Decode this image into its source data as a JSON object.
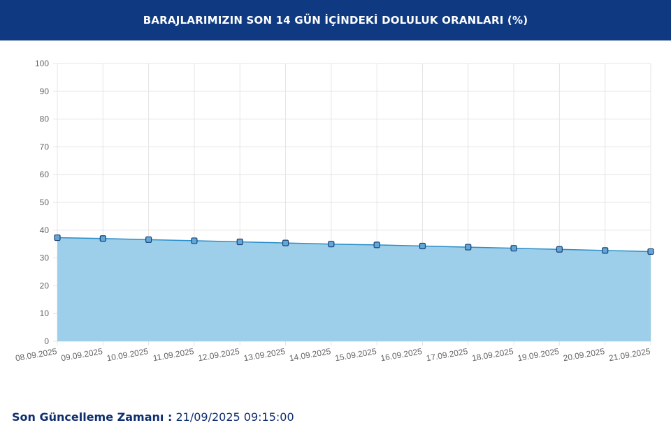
{
  "header": {
    "title": "BARAJLARIMIZIN SON 14 GÜN İÇİNDEKİ DOLULUK ORANLARI (%)"
  },
  "footer": {
    "label": "Son Güncelleme Zamanı :",
    "value": "21/09/2025 09:15:00"
  },
  "colors": {
    "header_bg": "#0f3a82",
    "line": "#2b8ec8",
    "fill": "#9dcfeb",
    "marker_fill": "#5fa8d8",
    "marker_stroke": "#1f3f73",
    "grid": "#e4e4e4",
    "tick_text": "#666666"
  },
  "chart_data": {
    "type": "area",
    "categories": [
      "08.09.2025",
      "09.09.2025",
      "10.09.2025",
      "11.09.2025",
      "12.09.2025",
      "13.09.2025",
      "14.09.2025",
      "15.09.2025",
      "16.09.2025",
      "17.09.2025",
      "18.09.2025",
      "19.09.2025",
      "20.09.2025",
      "21.09.2025"
    ],
    "values": [
      37.3,
      37.0,
      36.6,
      36.2,
      35.8,
      35.4,
      35.0,
      34.7,
      34.3,
      33.9,
      33.5,
      33.1,
      32.7,
      32.3
    ],
    "yticks": [
      0,
      10,
      20,
      30,
      40,
      50,
      60,
      70,
      80,
      90,
      100
    ],
    "ylim": [
      0,
      100
    ],
    "grid": true,
    "legend": "none"
  }
}
